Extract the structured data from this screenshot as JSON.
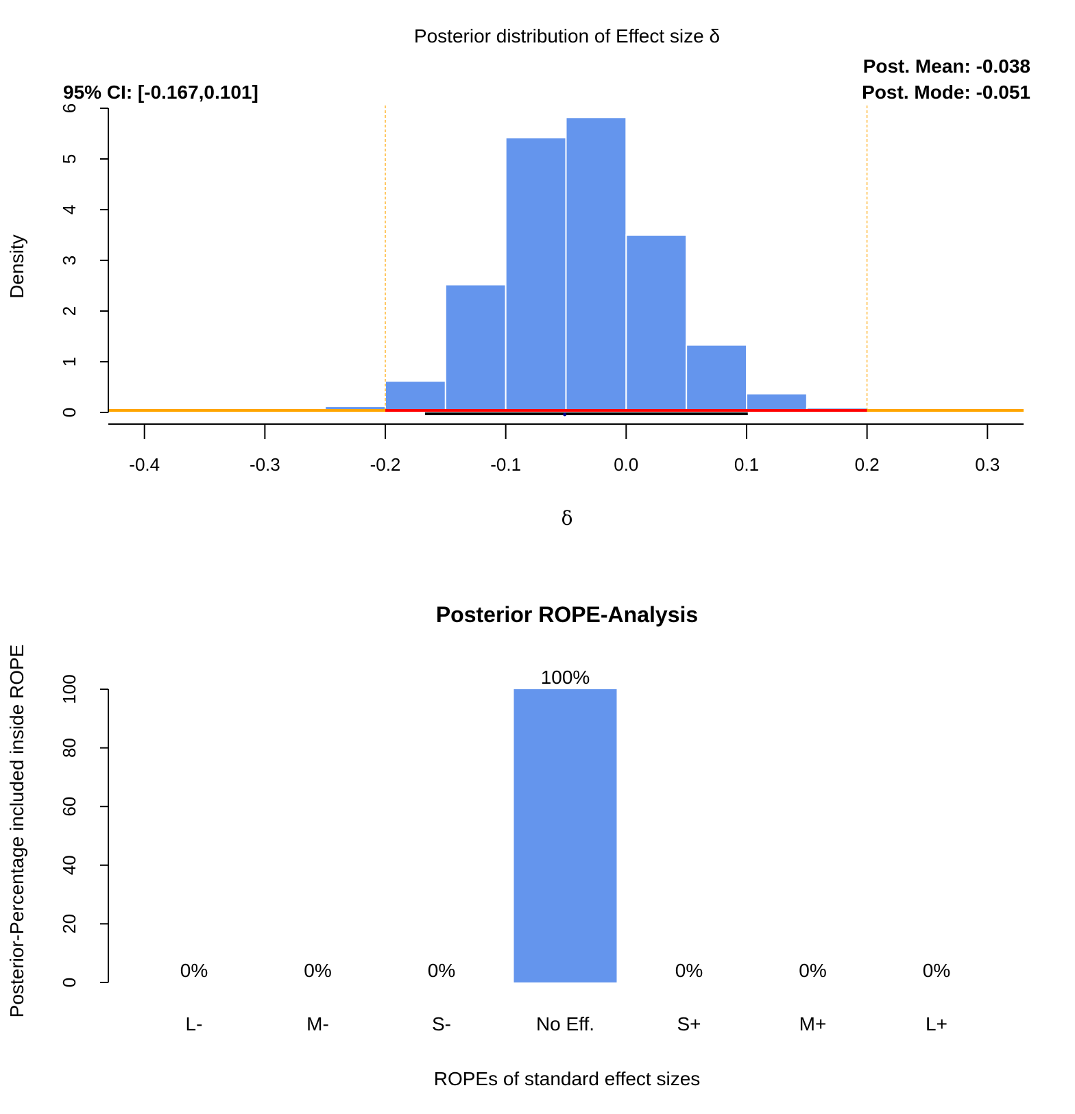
{
  "chart_data": [
    {
      "type": "bar",
      "subtype": "histogram",
      "title": "Posterior distribution of Effect size  δ",
      "xlabel": "δ",
      "ylabel": "Density",
      "xlim": [
        -0.43,
        0.33
      ],
      "ylim": [
        0,
        6
      ],
      "xticks": [
        "-0.4",
        "-0.3",
        "-0.2",
        "-0.1",
        "0.0",
        "0.1",
        "0.2",
        "0.3"
      ],
      "yticks": [
        "0",
        "1",
        "2",
        "3",
        "4",
        "5",
        "6"
      ],
      "ci_label": "95% CI: [-0.167,0.101]",
      "mean_label": "Post. Mean: -0.038",
      "mode_label": "Post. Mode: -0.051",
      "bins": [
        {
          "x0": -0.25,
          "x1": -0.2,
          "density": 0.12
        },
        {
          "x0": -0.2,
          "x1": -0.15,
          "density": 0.62
        },
        {
          "x0": -0.15,
          "x1": -0.1,
          "density": 2.52
        },
        {
          "x0": -0.1,
          "x1": -0.05,
          "density": 5.42
        },
        {
          "x0": -0.05,
          "x1": 0.0,
          "density": 5.82
        },
        {
          "x0": 0.0,
          "x1": 0.05,
          "density": 3.5
        },
        {
          "x0": 0.05,
          "x1": 0.1,
          "density": 1.33
        },
        {
          "x0": 0.1,
          "x1": 0.15,
          "density": 0.37
        },
        {
          "x0": 0.15,
          "x1": 0.2,
          "density": 0.09
        }
      ],
      "bar_color": "#6495ED",
      "prior_line": {
        "y": 0.04,
        "color": "#FFA500"
      },
      "rope_lines": {
        "x": [
          -0.2,
          0.2
        ],
        "color": "#FFA500"
      },
      "rope_segment": {
        "x0": -0.2,
        "x1": 0.2,
        "y": 0.04,
        "color": "#FF0000"
      },
      "ci_segment": {
        "x0": -0.167,
        "x1": 0.101,
        "y": 0.0,
        "color": "#000000"
      },
      "mode_x": -0.051
    },
    {
      "type": "bar",
      "title": "Posterior ROPE-Analysis",
      "xlabel": "ROPEs of standard effect sizes",
      "ylabel": "Posterior-Percentage included inside ROPE",
      "ylim": [
        0,
        100
      ],
      "yticks": [
        "0",
        "20",
        "40",
        "60",
        "80",
        "100"
      ],
      "categories": [
        "L-",
        "M-",
        "S-",
        "No Eff.",
        "S+",
        "M+",
        "L+"
      ],
      "values": [
        0,
        0,
        0,
        100,
        0,
        0,
        0
      ],
      "value_labels": [
        "0%",
        "0%",
        "0%",
        "100%",
        "0%",
        "0%",
        "0%"
      ],
      "bar_color": "#6495ED"
    }
  ]
}
